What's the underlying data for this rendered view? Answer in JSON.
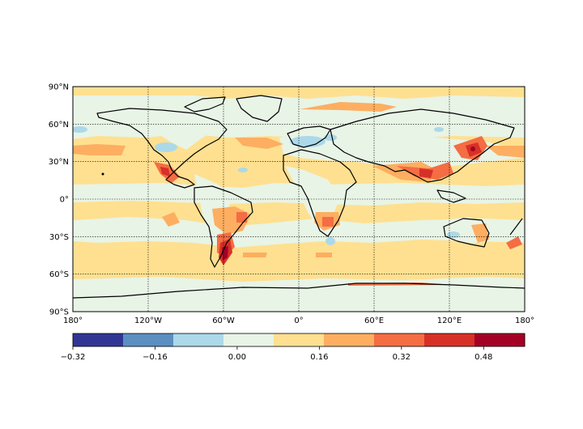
{
  "map": {
    "projection": "PlateCarree",
    "lat_range": [
      -90,
      90
    ],
    "lon_range": [
      -180,
      180
    ],
    "gridlines": true,
    "lat_ticks": [
      {
        "value": 90,
        "label": "90°N"
      },
      {
        "value": 60,
        "label": "60°N"
      },
      {
        "value": 30,
        "label": "30°N"
      },
      {
        "value": 0,
        "label": "0°"
      },
      {
        "value": -30,
        "label": "30°S"
      },
      {
        "value": -60,
        "label": "60°S"
      },
      {
        "value": -90,
        "label": "90°S"
      }
    ],
    "lon_ticks": [
      {
        "value": -180,
        "label": "180°"
      },
      {
        "value": -120,
        "label": "120°W"
      },
      {
        "value": -60,
        "label": "60°W"
      },
      {
        "value": 0,
        "label": "0°"
      },
      {
        "value": 60,
        "label": "60°E"
      },
      {
        "value": 120,
        "label": "120°E"
      },
      {
        "value": 180,
        "label": "180°"
      }
    ]
  },
  "colorbar": {
    "colors": [
      "#313695",
      "#5b8fc2",
      "#abd9e9",
      "#e8f4e6",
      "#fee090",
      "#fdae61",
      "#f46d43",
      "#d73027",
      "#a50026"
    ],
    "min": -0.32,
    "max": 0.56,
    "ticks": [
      {
        "value": -0.32,
        "label": "−0.32"
      },
      {
        "value": -0.16,
        "label": "−0.16"
      },
      {
        "value": 0.0,
        "label": "0.00"
      },
      {
        "value": 0.16,
        "label": "0.16"
      },
      {
        "value": 0.32,
        "label": "0.32"
      },
      {
        "value": 0.48,
        "label": "0.48"
      }
    ]
  }
}
